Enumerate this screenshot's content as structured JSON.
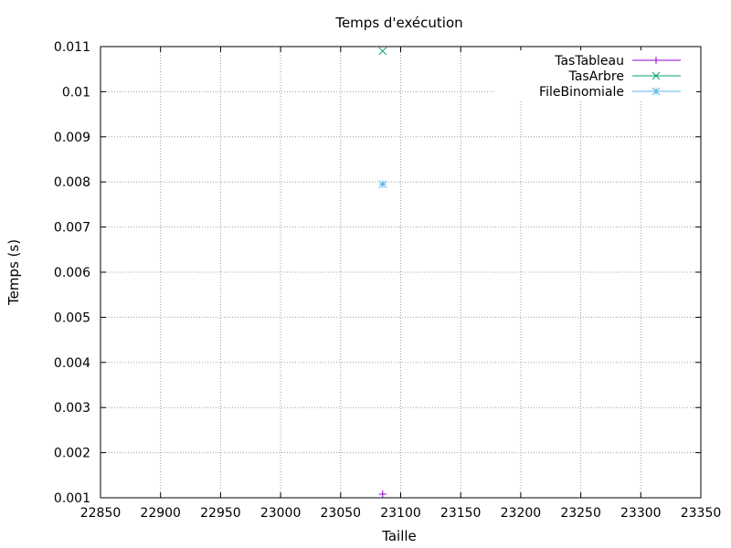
{
  "chart_data": {
    "type": "scatter",
    "title": "Temps d'exécution",
    "xlabel": "Taille",
    "ylabel": "Temps (s)",
    "xlim": [
      22850,
      23350
    ],
    "ylim": [
      0.001,
      0.011
    ],
    "x_ticks": [
      "22850",
      "22900",
      "22950",
      "23000",
      "23050",
      "23100",
      "23150",
      "23200",
      "23250",
      "23300",
      "23350"
    ],
    "y_ticks": [
      "0.001",
      "0.002",
      "0.003",
      "0.004",
      "0.005",
      "0.006",
      "0.007",
      "0.008",
      "0.009",
      "0.01",
      "0.011"
    ],
    "grid": true,
    "legend_position": "top-right",
    "series": [
      {
        "name": "TasTableau",
        "color": "#9400d3",
        "marker": "plus",
        "points": [
          [
            23085,
            0.00108
          ]
        ]
      },
      {
        "name": "TasArbre",
        "color": "#009e73",
        "marker": "cross",
        "points": [
          [
            23085,
            0.0109
          ]
        ]
      },
      {
        "name": "FileBinomiale",
        "color": "#56b4e9",
        "marker": "star",
        "points": [
          [
            23085,
            0.00795
          ]
        ]
      }
    ]
  }
}
